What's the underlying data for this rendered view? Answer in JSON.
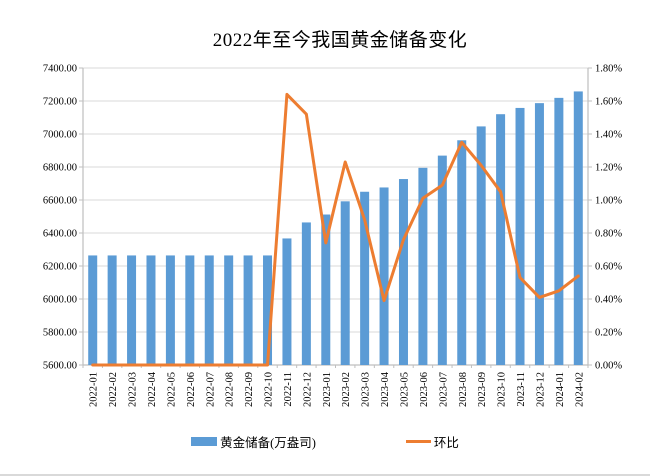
{
  "chart_data": {
    "type": "bar",
    "title": "2022年至今我国黄金储备变化",
    "categories": [
      "2022-01",
      "2022-02",
      "2022-03",
      "2022-04",
      "2022-05",
      "2022-06",
      "2022-07",
      "2022-08",
      "2022-09",
      "2022-10",
      "2022-11",
      "2022-12",
      "2023-01",
      "2023-02",
      "2023-03",
      "2023-04",
      "2023-05",
      "2023-06",
      "2023-07",
      "2023-08",
      "2023-09",
      "2023-10",
      "2023-11",
      "2023-12",
      "2024-01",
      "2024-02"
    ],
    "series": [
      {
        "name": "黄金储备(万盎司)",
        "type": "bar",
        "axis": "left",
        "color": "#5B9BD5",
        "values": [
          6264,
          6264,
          6264,
          6264,
          6264,
          6264,
          6264,
          6264,
          6264,
          6264,
          6367,
          6464,
          6512,
          6592,
          6650,
          6676,
          6727,
          6795,
          6869,
          6962,
          7046,
          7120,
          7158,
          7187,
          7219,
          7258
        ]
      },
      {
        "name": "环比",
        "type": "line",
        "axis": "right",
        "color": "#ED7D31",
        "values": [
          0,
          0,
          0,
          0,
          0,
          0,
          0,
          0,
          0,
          0,
          1.64,
          1.52,
          0.74,
          1.23,
          0.88,
          0.39,
          0.76,
          1.01,
          1.09,
          1.35,
          1.21,
          1.05,
          0.53,
          0.41,
          0.45,
          0.54
        ]
      }
    ],
    "left_axis": {
      "min": 5600,
      "max": 7400,
      "step": 200
    },
    "right_axis": {
      "min": 0,
      "max": 1.8,
      "step": 0.2
    },
    "left_axis_ticks": [
      "7400.00",
      "7200.00",
      "7000.00",
      "6800.00",
      "6600.00",
      "6400.00",
      "6200.00",
      "6000.00",
      "5800.00",
      "5600.00"
    ],
    "right_axis_ticks": [
      "1.80%",
      "1.60%",
      "1.40%",
      "1.20%",
      "1.00%",
      "0.80%",
      "0.60%",
      "0.40%",
      "0.20%",
      "0.00%"
    ],
    "grid": true,
    "legend_position": "bottom",
    "colors": {
      "bar": "#5B9BD5",
      "line": "#ED7D31",
      "gridline": "#D9D9D9",
      "axis": "#BFBFBF",
      "text": "#000000"
    }
  }
}
